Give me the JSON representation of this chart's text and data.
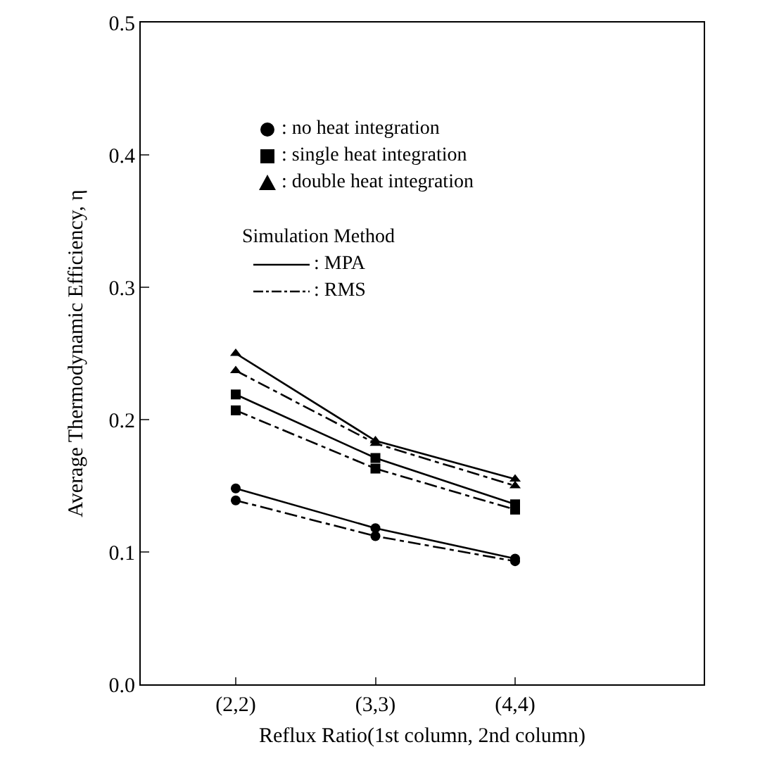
{
  "chart_data": {
    "type": "line",
    "xlabel": "Reflux Ratio(1st column, 2nd column)",
    "ylabel": "Average Thermodynamic Efficiency, η",
    "categories": [
      "(2,2)",
      "(3,3)",
      "(4,4)"
    ],
    "series": [
      {
        "color": "#000000",
        "marker": "circle",
        "line_style": "solid",
        "values": [
          0.148,
          0.118,
          0.095
        ]
      },
      {
        "color": "#000000",
        "marker": "square",
        "line_style": "solid",
        "values": [
          0.219,
          0.171,
          0.136
        ]
      },
      {
        "color": "#000000",
        "marker": "triangle",
        "line_style": "solid",
        "values": [
          0.25,
          0.184,
          0.155
        ]
      },
      {
        "color": "#000000",
        "marker": "circle",
        "line_style": "dashed",
        "values": [
          0.139,
          0.112,
          0.093
        ]
      },
      {
        "color": "#000000",
        "marker": "square",
        "line_style": "dashed",
        "values": [
          0.207,
          0.163,
          0.132
        ]
      },
      {
        "color": "#000000",
        "marker": "triangle",
        "line_style": "dashed",
        "values": [
          0.237,
          0.182,
          0.15
        ]
      }
    ],
    "ylim": [
      0,
      0.5
    ],
    "yticks": [
      {
        "value": 0,
        "label": "0.0"
      },
      0.1,
      0.2,
      0.3,
      0.4,
      0.5
    ],
    "grid": false,
    "annotations": [
      ": no heat integration",
      ": single heat integration",
      ": double heat integration",
      "Simulation Method",
      ": MPA",
      ": RMS"
    ]
  }
}
